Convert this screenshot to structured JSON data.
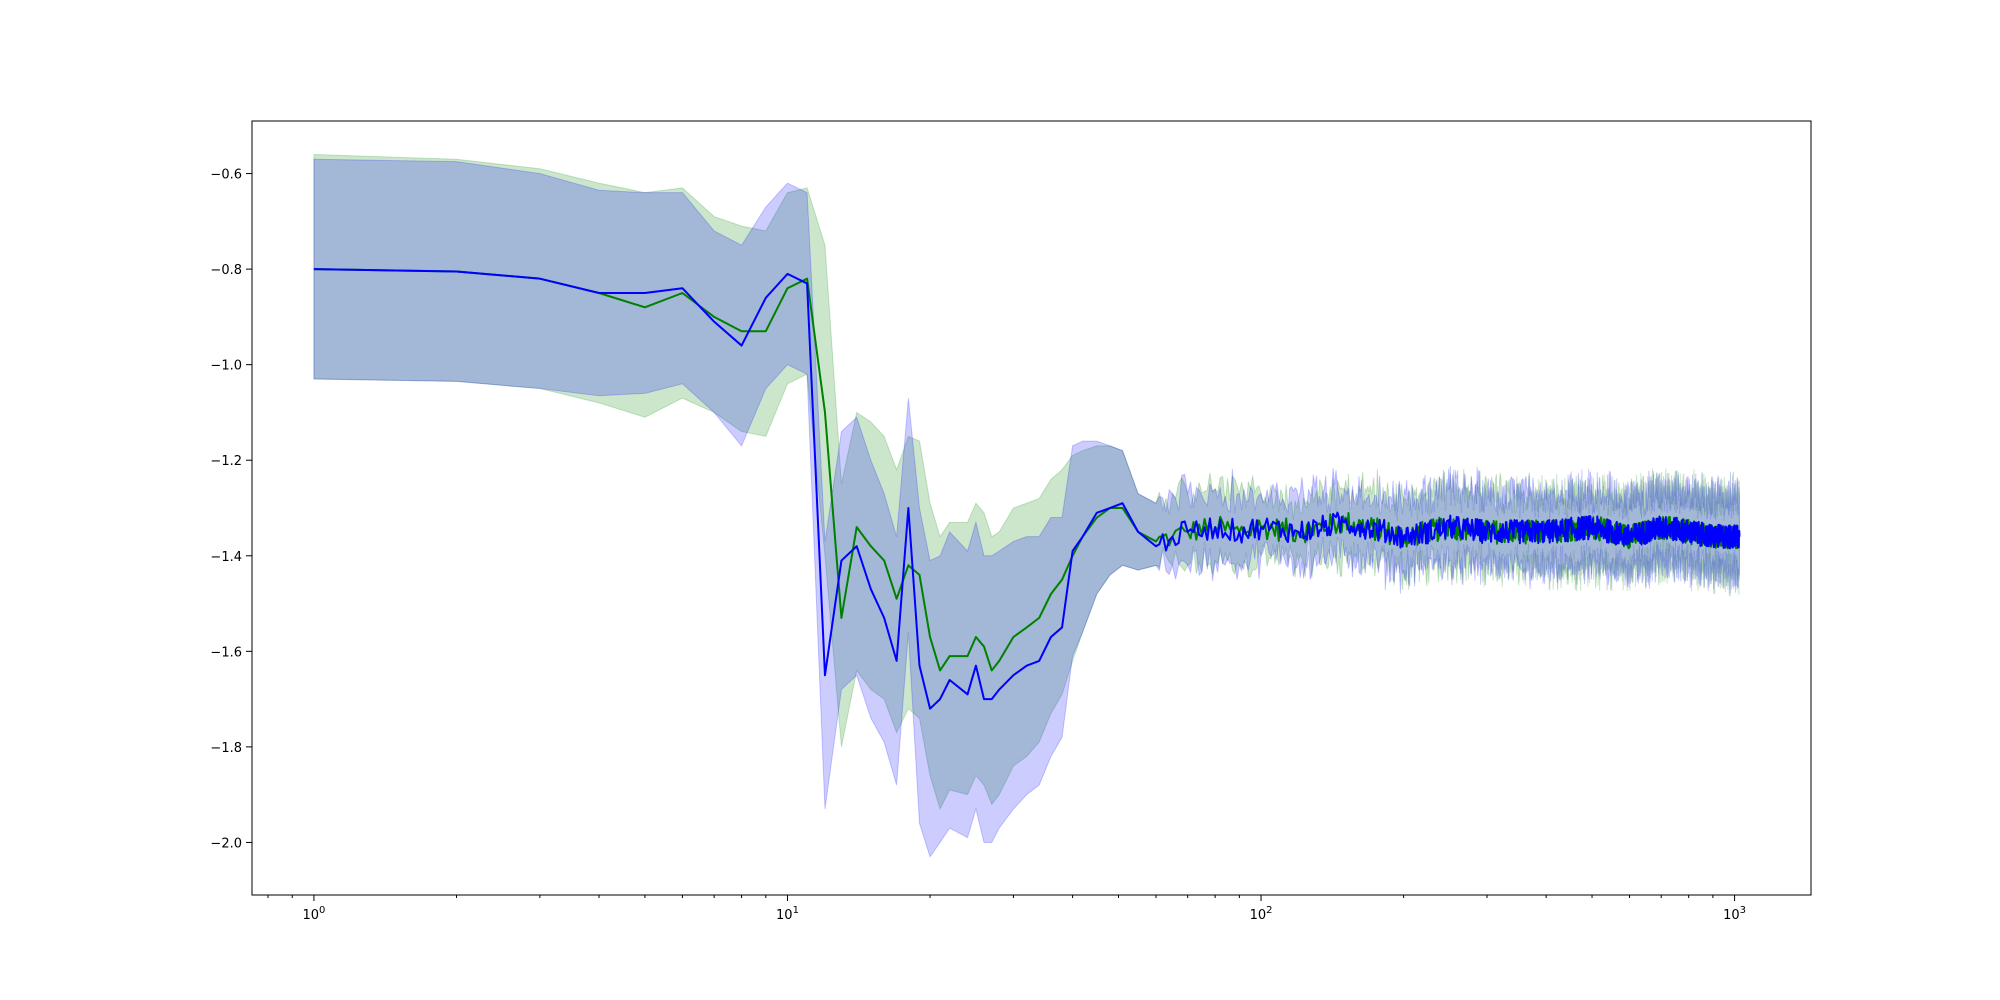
{
  "chart_data": {
    "type": "line",
    "title": "",
    "xlabel": "",
    "ylabel": "",
    "xscale": "log",
    "xlim": [
      0.74,
      1450
    ],
    "ylim": [
      -2.11,
      -0.49
    ],
    "grid": false,
    "legend": "none",
    "x_ticks": [
      {
        "value": 1,
        "base": "10",
        "exp": "0"
      },
      {
        "value": 10,
        "base": "10",
        "exp": "1"
      },
      {
        "value": 100,
        "base": "10",
        "exp": "2"
      },
      {
        "value": 1000,
        "base": "10",
        "exp": "3"
      }
    ],
    "y_ticks": [
      {
        "value": -0.6,
        "label": "−0.6"
      },
      {
        "value": -0.8,
        "label": "−0.8"
      },
      {
        "value": -1.0,
        "label": "−1.0"
      },
      {
        "value": -1.2,
        "label": "−1.2"
      },
      {
        "value": -1.4,
        "label": "−1.4"
      },
      {
        "value": -1.6,
        "label": "−1.6"
      },
      {
        "value": -1.8,
        "label": "−1.8"
      },
      {
        "value": -2.0,
        "label": "−2.0"
      }
    ],
    "series": [
      {
        "color": "#008000",
        "band_color": "#008000",
        "band_opacity": 0.2,
        "x": [
          1,
          2,
          3,
          4,
          5,
          6,
          7,
          8,
          9,
          10,
          11,
          12,
          13,
          14,
          15,
          16,
          17,
          18,
          19,
          20,
          21,
          22,
          24,
          25,
          26,
          27,
          28,
          30,
          32,
          34,
          36,
          38,
          40,
          42,
          45,
          48,
          51,
          55,
          60,
          65,
          70,
          80,
          90,
          100,
          120,
          150,
          200,
          250,
          300,
          400,
          500,
          600,
          700,
          800,
          900,
          1024
        ],
        "y": [
          -0.8,
          -0.805,
          -0.82,
          -0.85,
          -0.88,
          -0.85,
          -0.9,
          -0.93,
          -0.93,
          -0.84,
          -0.82,
          -1.1,
          -1.53,
          -1.34,
          -1.38,
          -1.41,
          -1.49,
          -1.42,
          -1.44,
          -1.57,
          -1.64,
          -1.61,
          -1.61,
          -1.57,
          -1.59,
          -1.64,
          -1.62,
          -1.57,
          -1.55,
          -1.53,
          -1.48,
          -1.45,
          -1.4,
          -1.36,
          -1.32,
          -1.3,
          -1.3,
          -1.35,
          -1.37,
          -1.36,
          -1.35,
          -1.34,
          -1.35,
          -1.34,
          -1.35,
          -1.33,
          -1.36,
          -1.34,
          -1.35,
          -1.35,
          -1.34,
          -1.36,
          -1.34,
          -1.35,
          -1.36,
          -1.36
        ],
        "lower": [
          -1.03,
          -1.035,
          -1.05,
          -1.08,
          -1.11,
          -1.07,
          -1.1,
          -1.14,
          -1.15,
          -1.04,
          -1.02,
          -1.4,
          -1.8,
          -1.64,
          -1.68,
          -1.7,
          -1.77,
          -1.72,
          -1.74,
          -1.86,
          -1.93,
          -1.89,
          -1.9,
          -1.86,
          -1.88,
          -1.92,
          -1.9,
          -1.84,
          -1.82,
          -1.79,
          -1.73,
          -1.69,
          -1.62,
          -1.56,
          -1.48,
          -1.44,
          -1.42,
          -1.43,
          -1.42,
          -1.42,
          -1.42,
          -1.41,
          -1.42,
          -1.4,
          -1.41,
          -1.4,
          -1.43,
          -1.41,
          -1.42,
          -1.43,
          -1.42,
          -1.43,
          -1.41,
          -1.42,
          -1.43,
          -1.44
        ],
        "upper": [
          -0.56,
          -0.57,
          -0.59,
          -0.62,
          -0.64,
          -0.63,
          -0.69,
          -0.71,
          -0.72,
          -0.64,
          -0.63,
          -0.75,
          -1.25,
          -1.1,
          -1.12,
          -1.15,
          -1.22,
          -1.15,
          -1.16,
          -1.29,
          -1.36,
          -1.33,
          -1.33,
          -1.29,
          -1.31,
          -1.36,
          -1.35,
          -1.3,
          -1.29,
          -1.28,
          -1.24,
          -1.22,
          -1.19,
          -1.18,
          -1.17,
          -1.17,
          -1.18,
          -1.27,
          -1.29,
          -1.27,
          -1.27,
          -1.26,
          -1.27,
          -1.27,
          -1.28,
          -1.26,
          -1.28,
          -1.26,
          -1.27,
          -1.28,
          -1.27,
          -1.28,
          -1.26,
          -1.27,
          -1.28,
          -1.27
        ]
      },
      {
        "color": "#0000ff",
        "band_color": "#0000ff",
        "band_opacity": 0.2,
        "x": [
          1,
          2,
          3,
          4,
          5,
          6,
          7,
          8,
          9,
          10,
          11,
          12,
          13,
          14,
          15,
          16,
          17,
          18,
          19,
          20,
          21,
          22,
          24,
          25,
          26,
          27,
          28,
          30,
          32,
          34,
          36,
          38,
          40,
          42,
          45,
          48,
          51,
          55,
          60,
          65,
          70,
          80,
          90,
          100,
          120,
          150,
          200,
          250,
          300,
          400,
          500,
          600,
          700,
          800,
          900,
          1024
        ],
        "y": [
          -0.8,
          -0.805,
          -0.82,
          -0.85,
          -0.85,
          -0.84,
          -0.91,
          -0.96,
          -0.86,
          -0.81,
          -0.83,
          -1.65,
          -1.41,
          -1.38,
          -1.47,
          -1.53,
          -1.62,
          -1.3,
          -1.63,
          -1.72,
          -1.7,
          -1.66,
          -1.69,
          -1.63,
          -1.7,
          -1.7,
          -1.68,
          -1.65,
          -1.63,
          -1.62,
          -1.57,
          -1.55,
          -1.39,
          -1.36,
          -1.31,
          -1.3,
          -1.29,
          -1.35,
          -1.38,
          -1.36,
          -1.35,
          -1.34,
          -1.35,
          -1.34,
          -1.35,
          -1.33,
          -1.36,
          -1.34,
          -1.35,
          -1.35,
          -1.34,
          -1.36,
          -1.34,
          -1.35,
          -1.36,
          -1.36
        ],
        "lower": [
          -1.03,
          -1.035,
          -1.05,
          -1.065,
          -1.06,
          -1.04,
          -1.1,
          -1.17,
          -1.05,
          -1.0,
          -1.02,
          -1.93,
          -1.68,
          -1.65,
          -1.74,
          -1.79,
          -1.88,
          -1.56,
          -1.96,
          -2.03,
          -2.0,
          -1.97,
          -1.99,
          -1.93,
          -2.0,
          -2.0,
          -1.97,
          -1.93,
          -1.9,
          -1.88,
          -1.82,
          -1.78,
          -1.61,
          -1.56,
          -1.48,
          -1.44,
          -1.42,
          -1.43,
          -1.42,
          -1.42,
          -1.42,
          -1.41,
          -1.42,
          -1.4,
          -1.41,
          -1.4,
          -1.43,
          -1.41,
          -1.42,
          -1.43,
          -1.42,
          -1.43,
          -1.41,
          -1.42,
          -1.43,
          -1.44
        ],
        "upper": [
          -0.57,
          -0.575,
          -0.6,
          -0.635,
          -0.64,
          -0.64,
          -0.72,
          -0.75,
          -0.67,
          -0.62,
          -0.64,
          -1.37,
          -1.14,
          -1.11,
          -1.2,
          -1.27,
          -1.36,
          -1.07,
          -1.3,
          -1.41,
          -1.4,
          -1.35,
          -1.39,
          -1.33,
          -1.4,
          -1.4,
          -1.39,
          -1.37,
          -1.36,
          -1.36,
          -1.32,
          -1.32,
          -1.17,
          -1.16,
          -1.16,
          -1.17,
          -1.18,
          -1.27,
          -1.29,
          -1.27,
          -1.27,
          -1.26,
          -1.27,
          -1.27,
          -1.28,
          -1.26,
          -1.28,
          -1.26,
          -1.27,
          -1.28,
          -1.27,
          -1.28,
          -1.26,
          -1.27,
          -1.28,
          -1.27
        ]
      }
    ]
  }
}
